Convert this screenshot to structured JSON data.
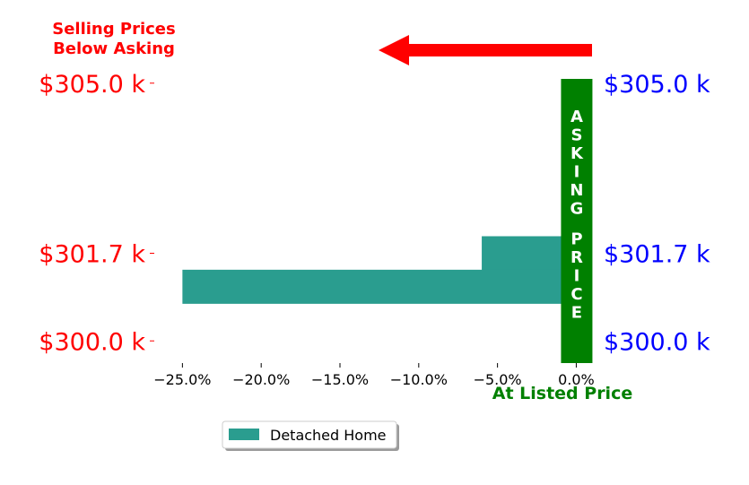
{
  "chart_data": {
    "type": "bar",
    "orientation": "horizontal",
    "title": "",
    "xlabel": "",
    "ylabel": "",
    "x_tick_labels": [
      "−25.0%",
      "−20.0%",
      "−15.0%",
      "−10.0%",
      "−5.0%",
      "0.0%"
    ],
    "x_ticks": [
      -25,
      -20,
      -15,
      -10,
      -5,
      0
    ],
    "xlim": [
      -26.9,
      1.0
    ],
    "ylim": [
      299.5,
      305.5
    ],
    "y_ticks": [
      300.0,
      301.7,
      305.0
    ],
    "y_tick_labels_left": [
      "$300.0 k",
      "$301.7 k",
      "$305.0 k"
    ],
    "y_tick_labels_right": [
      "$300.0 k",
      "$301.7 k",
      "$305.0 k"
    ],
    "series": [
      {
        "name": "Detached Home",
        "color": "#2a9d8f",
        "bars": [
          {
            "price": 301.7,
            "value": -6.0
          },
          {
            "price": 301.05,
            "value": -25.0
          }
        ]
      }
    ],
    "asking_band": {
      "value": 0.0,
      "color": "#008000",
      "label": "ASKING PRICE"
    },
    "annotations": {
      "below_asking": [
        "Selling Prices",
        "Below Asking"
      ],
      "at_listed": "At Listed Price",
      "arrow_color": "#ff0000"
    },
    "colors": {
      "left_ticks": "#ff0000",
      "right_ticks": "#0000ff",
      "annotation_green": "#008000"
    },
    "legend": {
      "position": "bottom-left",
      "entries": [
        "Detached Home"
      ]
    },
    "grid": false
  }
}
